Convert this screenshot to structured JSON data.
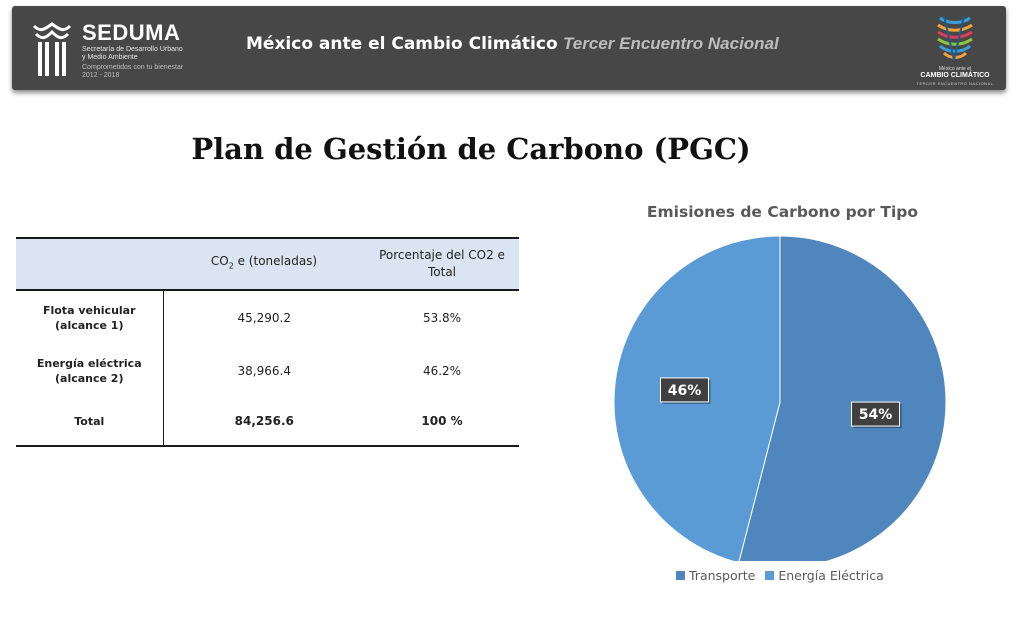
{
  "header": {
    "org_name": "SEDUMA",
    "org_sub1": "Secretaría de Desarrollo Urbano",
    "org_sub2": "y Medio Ambiente",
    "org_sub3": "Comprometidos con tu bienestar",
    "org_sub4": "2012 - 2018",
    "title_main": "México ante el Cambio Climático",
    "title_sub": "Tercer Encuentro Nacional",
    "right_logo_line1": "México ante el",
    "right_logo_line2": "CAMBIO CLIMÁTICO",
    "right_logo_line3": "TERCER ENCUENTRO NACIONAL",
    "banner_color": "#474747"
  },
  "page_title": "Plan de Gestión de Carbono (PGC)",
  "table": {
    "header_col1": "",
    "header_col2_pre": "CO",
    "header_col2_sub": "2",
    "header_col2_post": " e (toneladas)",
    "header_col3": "Porcentaje del CO2 e Total",
    "rows": [
      {
        "label": "Flota vehicular (alcance 1)",
        "tons": "45,290.2",
        "pct": "53.8%"
      },
      {
        "label": "Energía eléctrica (alcance 2)",
        "tons": "38,966.4",
        "pct": "46.2%"
      },
      {
        "label": "Total",
        "tons": "84,256.6",
        "pct": "100 %"
      }
    ]
  },
  "chart_data": {
    "type": "pie",
    "title": "Emisiones de Carbono por Tipo",
    "categories": [
      "Transporte",
      "Energía Eléctrica"
    ],
    "values": [
      54,
      46
    ],
    "labels": [
      "54%",
      "46%"
    ],
    "colors": [
      "#4f86bd",
      "#5b9bd5"
    ],
    "legend_position": "bottom"
  }
}
